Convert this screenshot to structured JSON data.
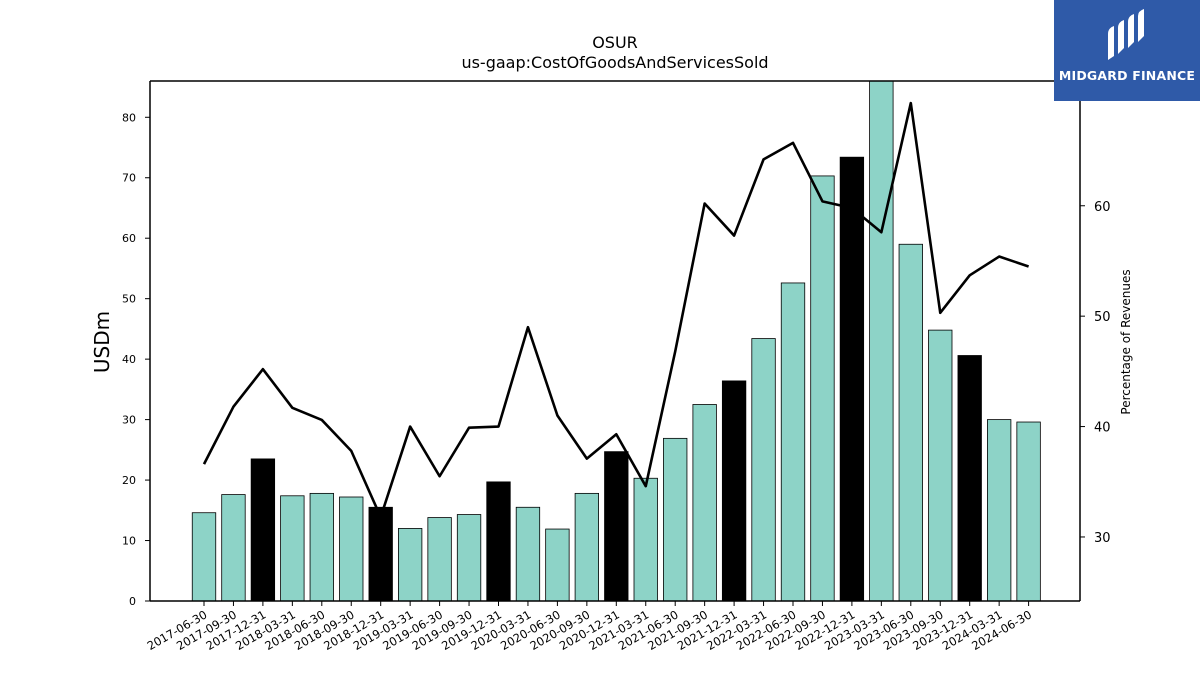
{
  "logo": {
    "text": "MIDGARD FINANCE"
  },
  "chart_data": {
    "type": "bar",
    "title": "OSUR",
    "subtitle": "us-gaap:CostOfGoodsAndServicesSold",
    "ylabel": "USDm",
    "y2label": "Percentage of Revenues",
    "ylim": [
      0,
      86
    ],
    "y2lim": [
      24.2,
      71.3
    ],
    "yticks": [
      0,
      10,
      20,
      30,
      40,
      50,
      60,
      70,
      80
    ],
    "y2ticks": [
      30,
      40,
      50,
      60
    ],
    "categories": [
      "2017-06-30",
      "2017-09-30",
      "2017-12-31",
      "2018-03-31",
      "2018-06-30",
      "2018-09-30",
      "2018-12-31",
      "2019-03-31",
      "2019-06-30",
      "2019-09-30",
      "2019-12-31",
      "2020-03-31",
      "2020-06-30",
      "2020-09-30",
      "2020-12-31",
      "2021-03-31",
      "2021-06-30",
      "2021-09-30",
      "2021-12-31",
      "2022-03-31",
      "2022-06-30",
      "2022-09-30",
      "2022-12-31",
      "2023-03-31",
      "2023-06-30",
      "2023-09-30",
      "2023-12-31",
      "2024-03-31",
      "2024-06-30"
    ],
    "series": [
      {
        "type": "bar",
        "values": [
          14.6,
          17.6,
          23.5,
          17.4,
          17.8,
          17.2,
          15.5,
          12.0,
          13.8,
          14.3,
          19.7,
          15.5,
          11.9,
          17.8,
          24.7,
          20.3,
          26.9,
          32.5,
          36.4,
          43.4,
          52.6,
          70.3,
          73.4,
          86.0,
          59.0,
          44.8,
          40.6,
          30.0,
          29.6
        ],
        "colors": [
          "#8dd3c7",
          "#8dd3c7",
          "#000000",
          "#8dd3c7",
          "#8dd3c7",
          "#8dd3c7",
          "#000000",
          "#8dd3c7",
          "#8dd3c7",
          "#8dd3c7",
          "#000000",
          "#8dd3c7",
          "#8dd3c7",
          "#8dd3c7",
          "#000000",
          "#8dd3c7",
          "#8dd3c7",
          "#8dd3c7",
          "#000000",
          "#8dd3c7",
          "#8dd3c7",
          "#8dd3c7",
          "#000000",
          "#8dd3c7",
          "#8dd3c7",
          "#8dd3c7",
          "#000000",
          "#8dd3c7",
          "#8dd3c7"
        ]
      },
      {
        "type": "line",
        "axis": "secondary",
        "color": "#000000",
        "values": [
          36.6,
          41.8,
          45.2,
          41.7,
          40.6,
          37.8,
          31.8,
          40.0,
          35.5,
          39.9,
          40.0,
          49.0,
          41.0,
          37.1,
          39.3,
          34.6,
          46.8,
          60.2,
          57.3,
          64.2,
          65.7,
          60.4,
          59.8,
          57.6,
          69.3,
          50.3,
          53.7,
          55.4,
          54.5
        ]
      }
    ],
    "grid": false,
    "legend": "none"
  }
}
